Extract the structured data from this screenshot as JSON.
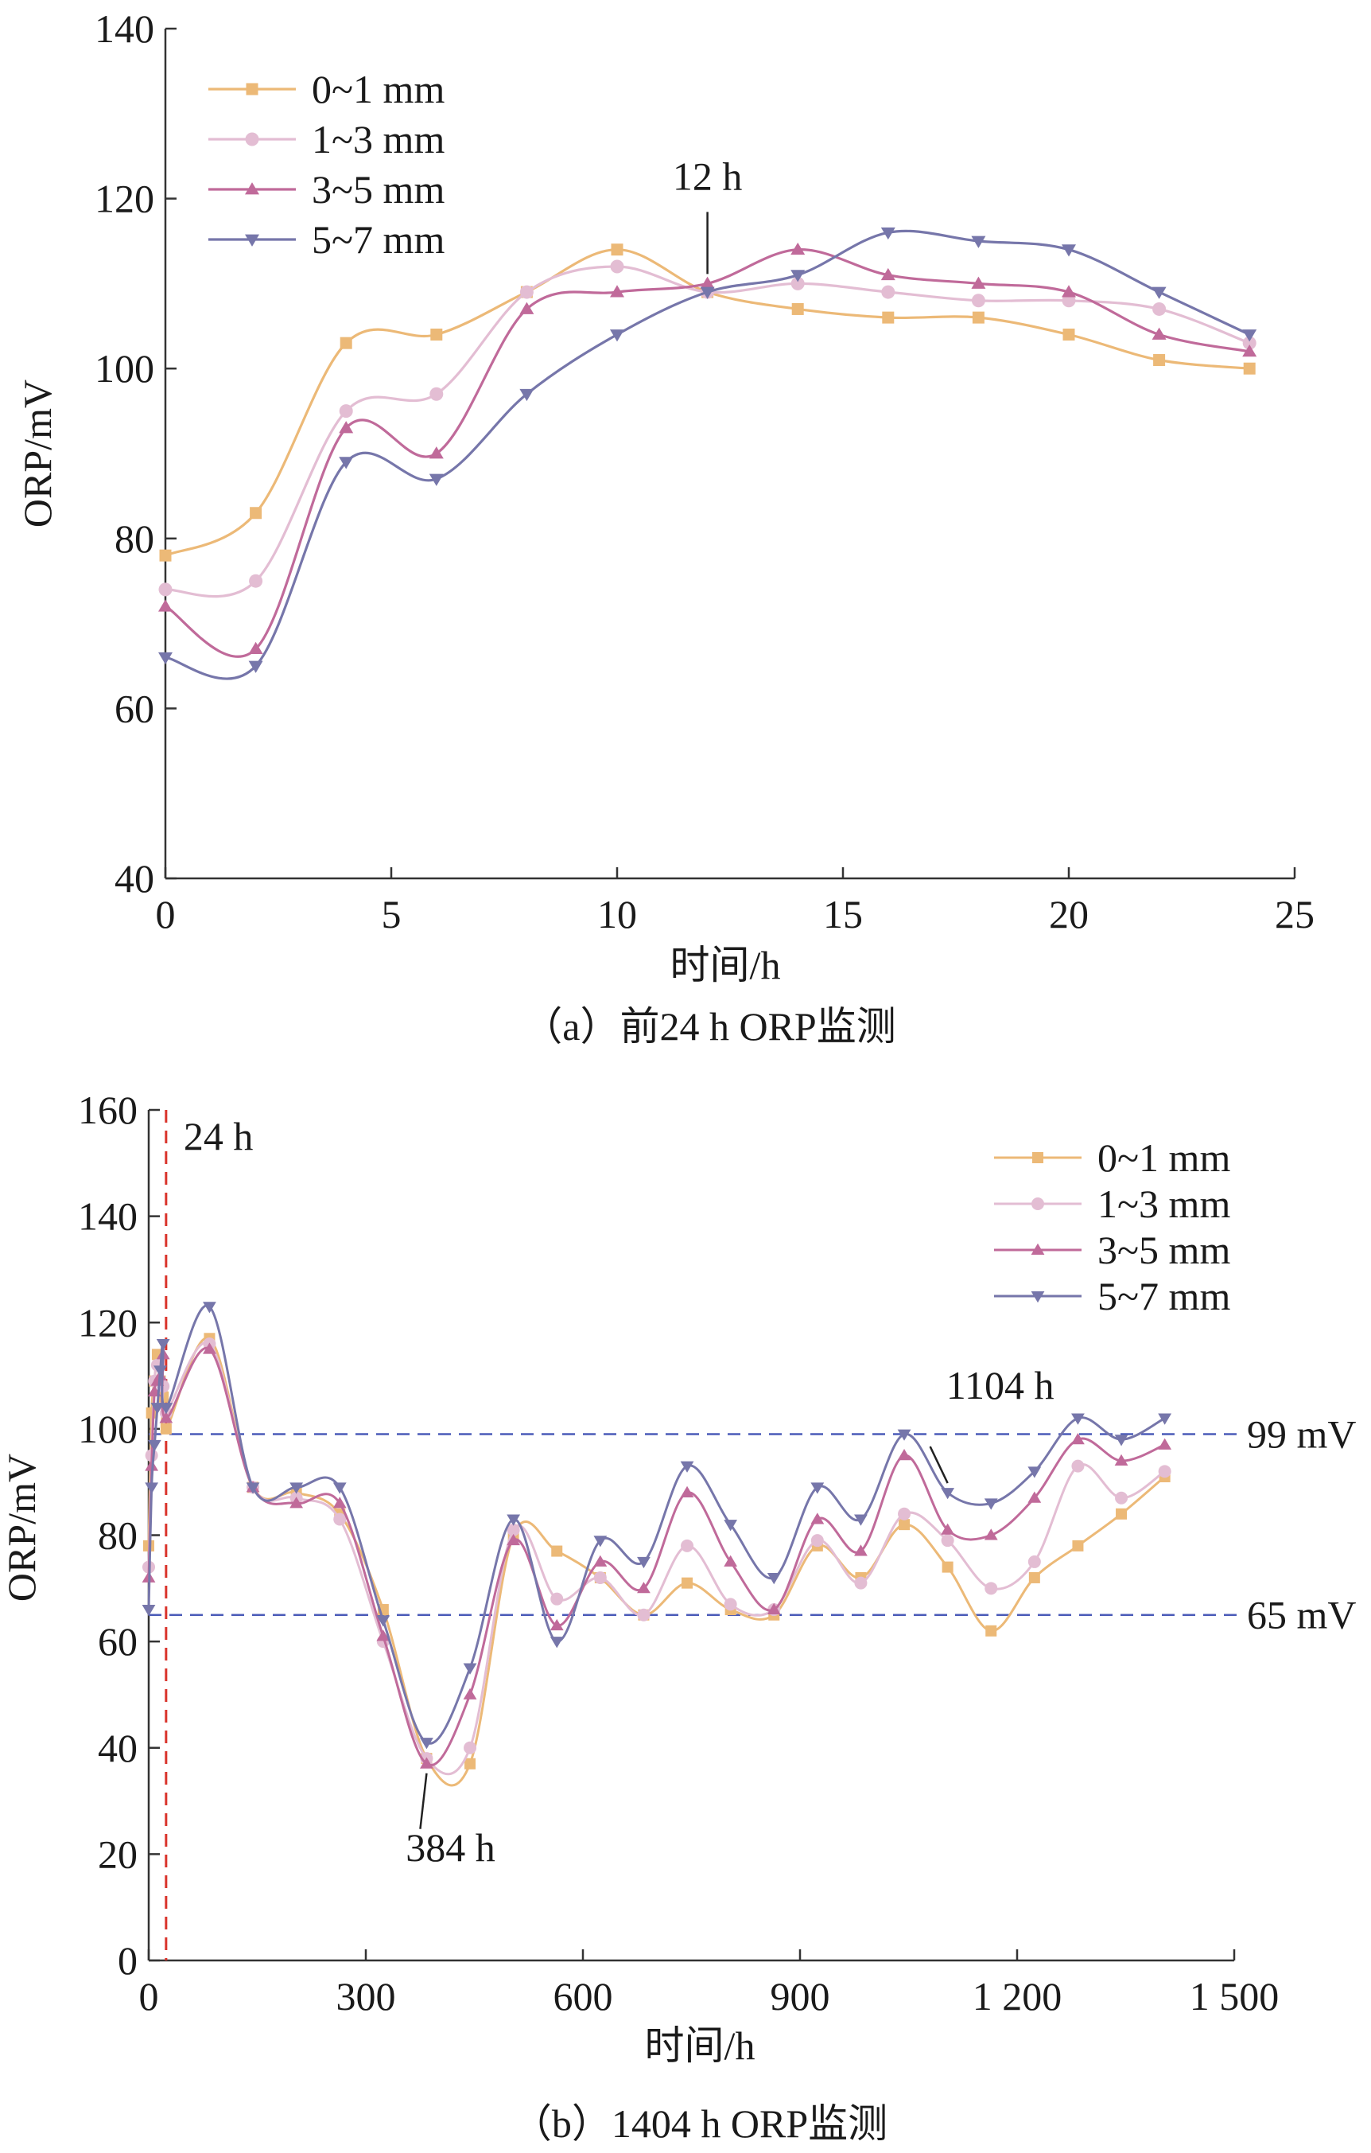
{
  "chart_data": [
    {
      "type": "line",
      "caption": "（a）前24 h ORP监测",
      "xlabel": "时间/h",
      "ylabel": "ORP/mV",
      "xlim": [
        0,
        25
      ],
      "ylim": [
        40,
        140
      ],
      "xticks": [
        0,
        5,
        10,
        15,
        20,
        25
      ],
      "xtick_labels": [
        "0",
        "5",
        "10",
        "15",
        "20",
        "25"
      ],
      "yticks": [
        40,
        60,
        80,
        100,
        120,
        140
      ],
      "ytick_labels": [
        "40",
        "60",
        "80",
        "100",
        "120",
        "140"
      ],
      "grid": false,
      "legend_position": "top-left",
      "x": [
        0,
        2,
        4,
        6,
        8,
        10,
        12,
        14,
        16,
        18,
        20,
        22,
        24
      ],
      "series": [
        {
          "name": "0~1 mm",
          "color": "#ecb977",
          "marker": "square",
          "values": [
            78,
            83,
            103,
            104,
            109,
            114,
            109,
            107,
            106,
            106,
            104,
            101,
            100
          ]
        },
        {
          "name": "1~3 mm",
          "color": "#e3bdd3",
          "marker": "circle",
          "values": [
            74,
            75,
            95,
            97,
            109,
            112,
            109,
            110,
            109,
            108,
            108,
            107,
            103
          ]
        },
        {
          "name": "3~5 mm",
          "color": "#c06a9a",
          "marker": "triangle-up",
          "values": [
            72,
            67,
            93,
            90,
            107,
            109,
            110,
            114,
            111,
            110,
            109,
            104,
            102
          ]
        },
        {
          "name": "5~7 mm",
          "color": "#7676aa",
          "marker": "triangle-down",
          "values": [
            66,
            65,
            89,
            87,
            97,
            104,
            109,
            111,
            116,
            115,
            114,
            109,
            104
          ]
        }
      ],
      "annotations": [
        {
          "text": "12 h",
          "x": 12,
          "y": 110
        }
      ]
    },
    {
      "type": "line",
      "caption": "（b）1404 h ORP监测",
      "xlabel": "时间/h",
      "ylabel": "ORP/mV",
      "xlim": [
        0,
        1500
      ],
      "ylim": [
        0,
        160
      ],
      "xticks": [
        0,
        300,
        600,
        900,
        1200,
        1500
      ],
      "xtick_labels": [
        "0",
        "300",
        "600",
        "900",
        "1 200",
        "1 500"
      ],
      "yticks": [
        0,
        20,
        40,
        60,
        80,
        100,
        120,
        140,
        160
      ],
      "ytick_labels": [
        "0",
        "20",
        "40",
        "60",
        "80",
        "100",
        "120",
        "140",
        "160"
      ],
      "grid": false,
      "legend_position": "top-right",
      "x": [
        0,
        4,
        8,
        12,
        16,
        20,
        24,
        84,
        144,
        204,
        264,
        324,
        384,
        444,
        504,
        564,
        624,
        684,
        744,
        804,
        864,
        924,
        984,
        1044,
        1104,
        1164,
        1224,
        1284,
        1344,
        1404
      ],
      "series": [
        {
          "name": "0~1 mm",
          "color": "#ecb977",
          "marker": "square",
          "values": [
            78,
            103,
            109,
            114,
            109,
            106,
            100,
            117,
            89,
            88,
            84,
            66,
            38,
            37,
            80,
            77,
            72,
            65,
            71,
            66,
            65,
            78,
            72,
            82,
            74,
            62,
            72,
            78,
            84,
            91
          ]
        },
        {
          "name": "1~3 mm",
          "color": "#e3bdd3",
          "marker": "circle",
          "values": [
            74,
            95,
            109,
            112,
            109,
            108,
            103,
            116,
            89,
            87,
            83,
            60,
            38,
            40,
            81,
            68,
            72,
            65,
            78,
            67,
            66,
            79,
            71,
            84,
            79,
            70,
            75,
            93,
            87,
            92
          ]
        },
        {
          "name": "3~5 mm",
          "color": "#c06a9a",
          "marker": "triangle-up",
          "values": [
            72,
            93,
            107,
            109,
            110,
            114,
            102,
            115,
            89,
            86,
            86,
            61,
            37,
            50,
            79,
            63,
            75,
            70,
            88,
            75,
            66,
            83,
            77,
            95,
            81,
            80,
            87,
            98,
            94,
            97
          ]
        },
        {
          "name": "5~7 mm",
          "color": "#7676aa",
          "marker": "triangle-down",
          "values": [
            66,
            89,
            97,
            104,
            111,
            116,
            104,
            123,
            89,
            89,
            89,
            64,
            41,
            55,
            83,
            60,
            79,
            75,
            93,
            82,
            72,
            89,
            83,
            99,
            88,
            86,
            92,
            102,
            98,
            102
          ]
        }
      ],
      "reference_lines": [
        {
          "type": "vertical",
          "x": 24,
          "label": "24 h",
          "color": "#d9332b"
        },
        {
          "type": "horizontal",
          "y": 99,
          "label": "99 mV",
          "color": "#4b5bb8"
        },
        {
          "type": "horizontal",
          "y": 65,
          "label": "65 mV",
          "color": "#4b5bb8"
        }
      ],
      "annotations": [
        {
          "text": "1104 h",
          "x": 1104,
          "y": 88
        },
        {
          "text": "384 h",
          "x": 384,
          "y": 37
        }
      ]
    }
  ]
}
